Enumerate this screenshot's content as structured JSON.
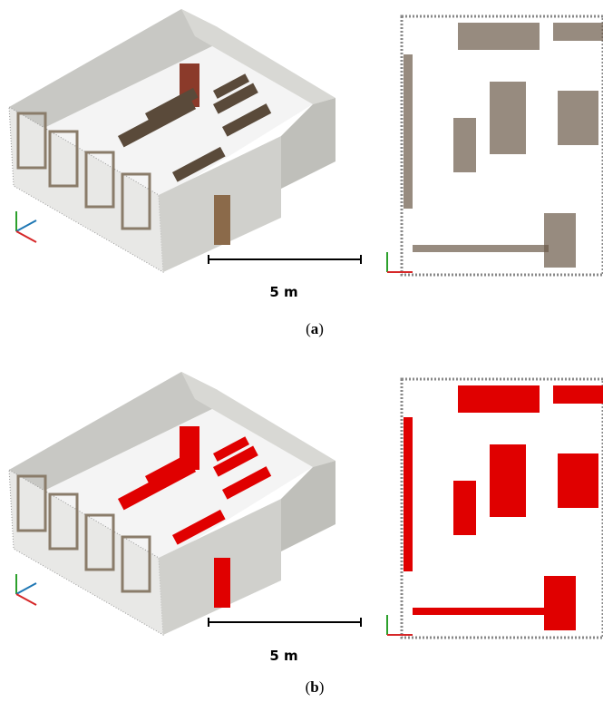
{
  "panels": [
    {
      "scale_label": "5 m",
      "caption": {
        "open": "(",
        "label": "a",
        "close": ")"
      }
    },
    {
      "scale_label": "5 m",
      "caption": {
        "open": "(",
        "label": "b",
        "close": ")"
      }
    }
  ]
}
